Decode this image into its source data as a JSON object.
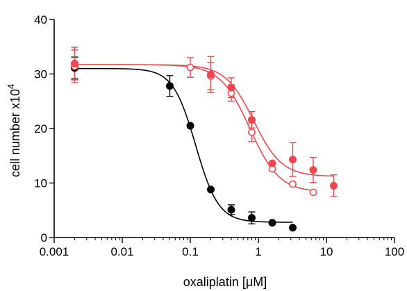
{
  "chart_data": {
    "type": "scatter",
    "xlabel": "oxaliplatin [μM]",
    "ylabel_main": "cell number x10",
    "ylabel_sup": "4",
    "xscale": "log",
    "xlim": [
      0.001,
      100
    ],
    "ylim": [
      0,
      40
    ],
    "xticks": [
      {
        "value": 0.001,
        "label": "0.001"
      },
      {
        "value": 0.01,
        "label": "0.01"
      },
      {
        "value": 0.1,
        "label": "0.1"
      },
      {
        "value": 1,
        "label": "1"
      },
      {
        "value": 10,
        "label": "10"
      },
      {
        "value": 100,
        "label": "100"
      }
    ],
    "yticks": [
      {
        "value": 0,
        "label": "0"
      },
      {
        "value": 10,
        "label": "10"
      },
      {
        "value": 20,
        "label": "20"
      },
      {
        "value": 30,
        "label": "30"
      },
      {
        "value": 40,
        "label": "40"
      }
    ],
    "grid": false,
    "legend": "none",
    "series": [
      {
        "color": "#000000",
        "marker": "filled-circle",
        "points": [
          {
            "x": 0.002,
            "y": 31.1,
            "err": 2.0
          },
          {
            "x": 0.05,
            "y": 27.8,
            "err": 1.9
          },
          {
            "x": 0.1,
            "y": 20.5,
            "err": 0
          },
          {
            "x": 0.2,
            "y": 8.8,
            "err": 0
          },
          {
            "x": 0.4,
            "y": 5.1,
            "err": 0.9
          },
          {
            "x": 0.8,
            "y": 3.6,
            "err": 1.1
          },
          {
            "x": 1.6,
            "y": 2.7,
            "err": 0
          },
          {
            "x": 3.2,
            "y": 1.8,
            "err": 0
          }
        ],
        "fit": {
          "top": 31.0,
          "bottom": 2.8,
          "ec50": 0.12,
          "hill": 2.6,
          "xmin": 0.002,
          "xmax": 3.2
        }
      },
      {
        "color": "#f0464e",
        "marker": "open-circle",
        "points": [
          {
            "x": 0.002,
            "y": 31.4,
            "err": 3.0
          },
          {
            "x": 0.1,
            "y": 31.2,
            "err": 1.8
          },
          {
            "x": 0.2,
            "y": 29.6,
            "err": 2.5
          },
          {
            "x": 0.4,
            "y": 26.5,
            "err": 1.5
          },
          {
            "x": 0.8,
            "y": 19.3,
            "err": 1.7
          },
          {
            "x": 1.6,
            "y": 12.6,
            "err": 0
          },
          {
            "x": 3.2,
            "y": 9.8,
            "err": 0
          },
          {
            "x": 6.4,
            "y": 8.3,
            "err": 0
          }
        ],
        "fit": {
          "top": 31.7,
          "bottom": 8.3,
          "ec50": 0.75,
          "hill": 2.0,
          "xmin": 0.002,
          "xmax": 6.4
        }
      },
      {
        "color": "#f0464e",
        "marker": "filled-circle",
        "points": [
          {
            "x": 0.002,
            "y": 31.9,
            "err": 3.0
          },
          {
            "x": 0.2,
            "y": 29.9,
            "err": 3.3
          },
          {
            "x": 0.4,
            "y": 27.5,
            "err": 1.8
          },
          {
            "x": 0.8,
            "y": 21.6,
            "err": 1.5
          },
          {
            "x": 1.6,
            "y": 13.6,
            "err": 0
          },
          {
            "x": 3.2,
            "y": 14.3,
            "err": 3.1
          },
          {
            "x": 6.4,
            "y": 12.4,
            "err": 2.3
          },
          {
            "x": 12.8,
            "y": 9.5,
            "err": 2.0
          }
        ],
        "fit": {
          "top": 31.7,
          "bottom": 11.2,
          "ec50": 0.85,
          "hill": 2.1,
          "xmin": 0.002,
          "xmax": 12.8
        }
      }
    ]
  }
}
